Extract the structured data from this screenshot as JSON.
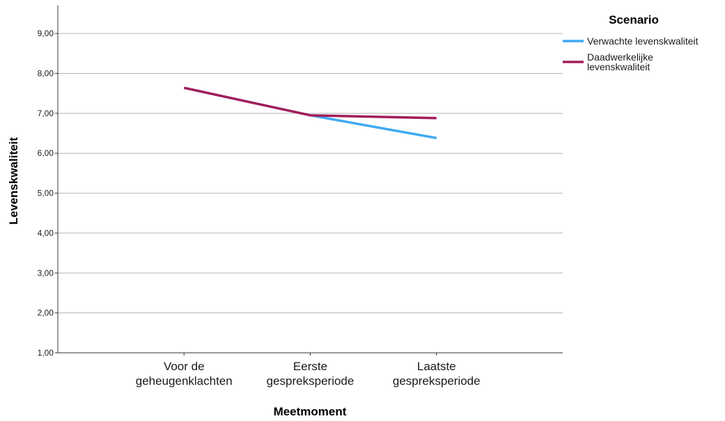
{
  "chart_data": {
    "type": "line",
    "xlabel": "Meetmoment",
    "ylabel": "Levenskwaliteit",
    "categories": [
      [
        "Voor de",
        "geheugenklachten"
      ],
      [
        "Eerste",
        "gespreksperiode"
      ],
      [
        "Laatste",
        "gespreksperiode"
      ]
    ],
    "ylim": [
      1,
      9.7
    ],
    "yticks": [
      "1,00",
      "2,00",
      "3,00",
      "4,00",
      "5,00",
      "6,00",
      "7,00",
      "8,00",
      "9,00"
    ],
    "grid": true,
    "legend": {
      "title": "Scenario",
      "placement": "top-right"
    },
    "series": [
      {
        "name": "Verwachte levenskwaliteit",
        "label_lines": [
          "Verwachte levenskwaliteit"
        ],
        "color": "#3fa9f5",
        "values": [
          7.64,
          6.95,
          6.38
        ]
      },
      {
        "name": "Daadwerkelijke levenskwaliteit",
        "label_lines": [
          "Daadwerkelijke",
          "levenskwaliteit"
        ],
        "color": "#a31d5b",
        "values": [
          7.64,
          6.95,
          6.88
        ]
      }
    ]
  }
}
